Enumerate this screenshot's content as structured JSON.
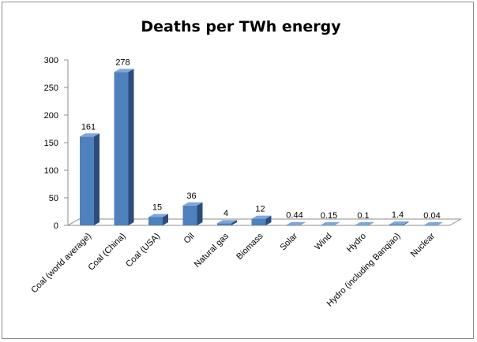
{
  "chart_data": {
    "type": "bar",
    "title": "Deaths per TWh energy",
    "xlabel": "",
    "ylabel": "",
    "ylim": [
      0,
      300
    ],
    "yticks": [
      0,
      50,
      100,
      150,
      200,
      250,
      300
    ],
    "grid": false,
    "legend": "none",
    "bar_color": "#4f81bd",
    "categories": [
      "Coal (world average)",
      "Coal (China)",
      "Coal (USA)",
      "Oil",
      "Natural gas",
      "Biomass",
      "Solar",
      "Wind",
      "Hydro",
      "Hydro (including Banqiao)",
      "Nuclear"
    ],
    "values": [
      161,
      278,
      15,
      36,
      4,
      12,
      0.44,
      0.15,
      0.1,
      1.4,
      0.04
    ],
    "data_labels": [
      "161",
      "278",
      "15",
      "36",
      "4",
      "12",
      "0.44",
      "0.15",
      "0.1",
      "1.4",
      "0.04"
    ]
  }
}
